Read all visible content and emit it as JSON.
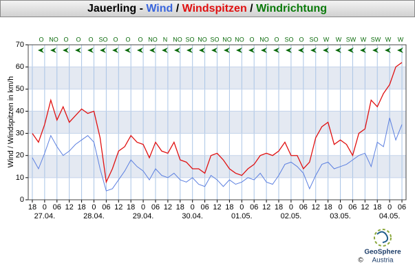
{
  "chart_data": {
    "type": "line",
    "title_parts": [
      {
        "text": "Jauerling - ",
        "color": "#000000"
      },
      {
        "text": "Wind",
        "color": "#3a66dd"
      },
      {
        "text": " / ",
        "color": "#000000"
      },
      {
        "text": "Windspitzen",
        "color": "#e01010"
      },
      {
        "text": " / ",
        "color": "#000000"
      },
      {
        "text": "Windrichtung",
        "color": "#0a7a0a"
      }
    ],
    "y_label": "Wind / Windspitzen in km/h",
    "x": [
      0,
      3,
      6,
      9,
      12,
      15,
      18,
      21,
      24,
      27,
      30,
      33,
      36,
      39,
      42,
      45,
      48,
      51,
      54,
      57,
      60,
      63,
      66,
      69,
      72,
      75,
      78,
      81,
      84,
      87,
      90,
      93,
      96,
      99,
      102,
      105,
      108,
      111,
      114,
      117,
      120,
      123,
      126,
      129,
      132,
      135,
      138,
      141,
      144,
      147,
      150,
      153,
      156,
      159,
      162,
      165,
      168,
      171,
      174,
      177,
      180
    ],
    "series": [
      {
        "name": "Windspitzen",
        "color": "#e01010",
        "values": [
          30,
          26,
          34,
          45,
          36,
          42,
          35,
          38,
          41,
          39,
          40,
          28,
          8,
          14,
          22,
          24,
          29,
          26,
          25,
          19,
          26,
          22,
          21,
          26,
          18,
          17,
          14,
          14,
          12,
          20,
          21,
          18,
          14,
          12,
          11,
          14,
          16,
          20,
          21,
          20,
          22,
          26,
          20,
          20,
          14,
          17,
          28,
          33,
          35,
          25,
          27,
          25,
          20,
          30,
          32,
          45,
          42,
          48,
          52,
          60,
          62
        ]
      },
      {
        "name": "Wind",
        "color": "#5b7fe0",
        "values": [
          19,
          14,
          21,
          29,
          24,
          20,
          22,
          25,
          27,
          29,
          26,
          14,
          4,
          5,
          9,
          13,
          18,
          15,
          13,
          9,
          14,
          11,
          10,
          12,
          9,
          8,
          10,
          7,
          6,
          11,
          9,
          6,
          9,
          7,
          8,
          10,
          9,
          12,
          8,
          7,
          11,
          16,
          17,
          15,
          12,
          5,
          11,
          16,
          17,
          14,
          15,
          16,
          18,
          20,
          21,
          15,
          26,
          24,
          37,
          27,
          34
        ]
      }
    ],
    "xlim": [
      -2,
      182
    ],
    "xticks": [
      {
        "value": 0,
        "label": "18"
      },
      {
        "value": 6,
        "label": "0"
      },
      {
        "value": 12,
        "label": "06"
      },
      {
        "value": 18,
        "label": "12"
      },
      {
        "value": 24,
        "label": "18"
      },
      {
        "value": 30,
        "label": "0"
      },
      {
        "value": 36,
        "label": "06"
      },
      {
        "value": 42,
        "label": "12"
      },
      {
        "value": 48,
        "label": "18"
      },
      {
        "value": 54,
        "label": "0"
      },
      {
        "value": 60,
        "label": "06"
      },
      {
        "value": 66,
        "label": "12"
      },
      {
        "value": 72,
        "label": "18"
      },
      {
        "value": 78,
        "label": "0"
      },
      {
        "value": 84,
        "label": "06"
      },
      {
        "value": 90,
        "label": "12"
      },
      {
        "value": 96,
        "label": "18"
      },
      {
        "value": 102,
        "label": "0"
      },
      {
        "value": 108,
        "label": "06"
      },
      {
        "value": 114,
        "label": "12"
      },
      {
        "value": 120,
        "label": "18"
      },
      {
        "value": 126,
        "label": "0"
      },
      {
        "value": 132,
        "label": "06"
      },
      {
        "value": 138,
        "label": "12"
      },
      {
        "value": 144,
        "label": "18"
      },
      {
        "value": 150,
        "label": "0"
      },
      {
        "value": 156,
        "label": "06"
      },
      {
        "value": 162,
        "label": "12"
      },
      {
        "value": 168,
        "label": "18"
      },
      {
        "value": 174,
        "label": "0"
      },
      {
        "value": 180,
        "label": "06"
      }
    ],
    "dates": [
      {
        "value": 6,
        "label": "27.04."
      },
      {
        "value": 30,
        "label": "28.04."
      },
      {
        "value": 54,
        "label": "29.04."
      },
      {
        "value": 78,
        "label": "30.04."
      },
      {
        "value": 102,
        "label": "01.05."
      },
      {
        "value": 126,
        "label": "02.05."
      },
      {
        "value": 150,
        "label": "03.05."
      },
      {
        "value": 174,
        "label": "04.05."
      }
    ],
    "ylim": [
      0,
      70
    ],
    "yticks": [
      0,
      10,
      20,
      30,
      40,
      50,
      60,
      70
    ],
    "grid": true,
    "wind_directions": [
      "O",
      "NO",
      "O",
      "O",
      "O",
      "SO",
      "O",
      "O",
      "O",
      "NO",
      "N",
      "NO",
      "SO",
      "NO",
      "SO",
      "NO",
      "NO",
      "O",
      "NO",
      "O",
      "SO",
      "O",
      "SO",
      "W",
      "W",
      "SW",
      "W",
      "SW",
      "W",
      "W"
    ],
    "logo": "GeoSphere",
    "logo_sub": "Austria",
    "copyright": "©"
  }
}
